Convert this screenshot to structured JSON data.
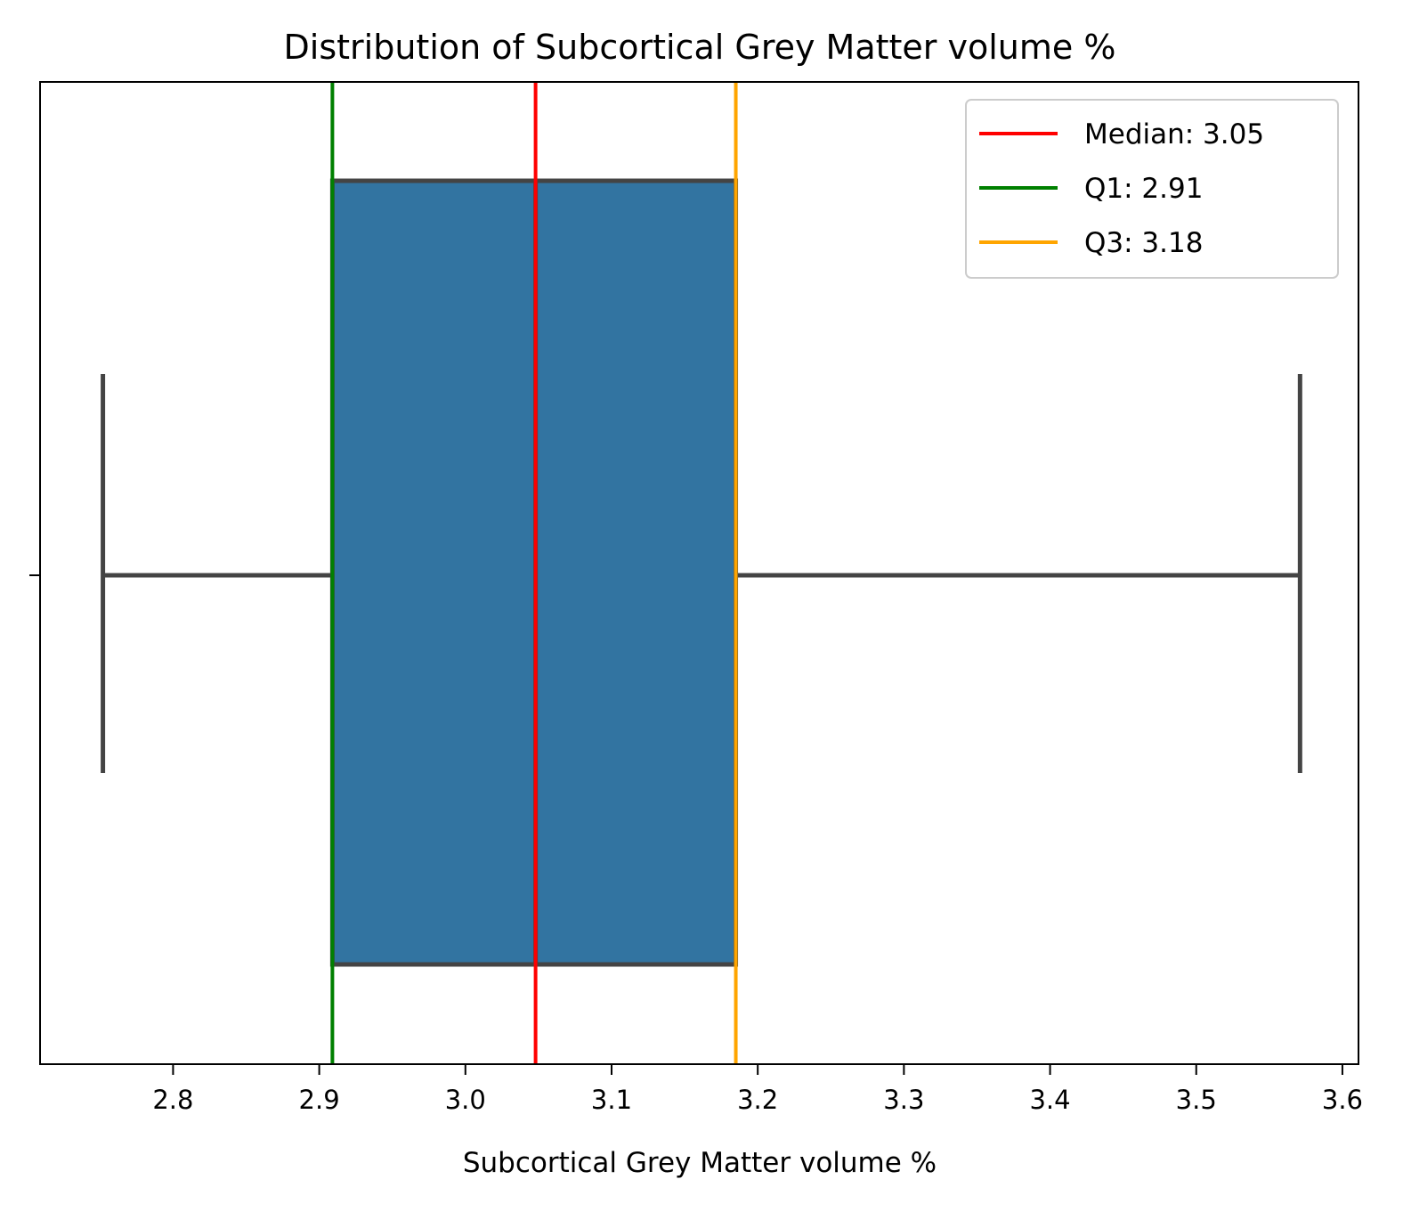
{
  "chart_data": {
    "type": "box",
    "title": "Distribution of Subcortical Grey Matter volume %",
    "xlabel": "Subcortical Grey Matter volume %",
    "ylabel": "",
    "xlim": [
      2.709,
      3.611
    ],
    "xticks": [
      2.8,
      2.9,
      3.0,
      3.1,
      3.2,
      3.3,
      3.4,
      3.5,
      3.6
    ],
    "xtick_labels": [
      "2.8",
      "2.9",
      "3.0",
      "3.1",
      "3.2",
      "3.3",
      "3.4",
      "3.5",
      "3.6"
    ],
    "box": {
      "whisker_low": 2.752,
      "q1": 2.909,
      "median": 3.048,
      "q3": 3.185,
      "whisker_high": 3.571,
      "fill_color": "#3274a1",
      "line_color": "#444444"
    },
    "reference_lines": [
      {
        "label": "Median: 3.05",
        "value": 3.048,
        "color": "#ff0000"
      },
      {
        "label": "Q1: 2.91",
        "value": 2.909,
        "color": "#008000"
      },
      {
        "label": "Q3: 3.18",
        "value": 3.185,
        "color": "#ffa500"
      }
    ],
    "legend_position": "upper right",
    "grid": false
  }
}
